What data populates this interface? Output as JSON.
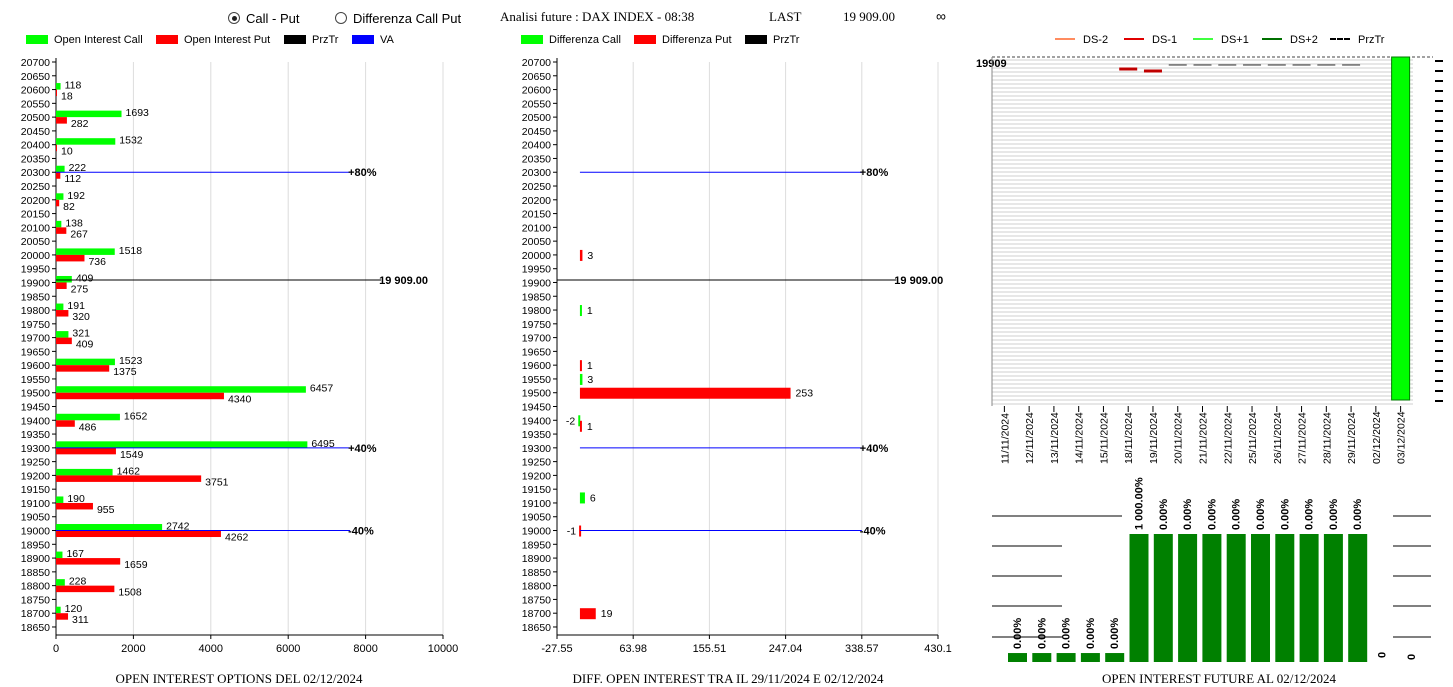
{
  "header": {
    "radio_call_put": "Call - Put",
    "radio_diff": "Differenza Call Put",
    "title": "Analisi future : DAX INDEX - 08:38",
    "last_label": "LAST",
    "last_value": "19 909.00",
    "infinity": "∞"
  },
  "colors": {
    "call": "#00ff00",
    "put": "#ff0000",
    "prz": "#000000",
    "va": "#0000ff",
    "future_bar": "#008000"
  },
  "left_legend": [
    "Open Interest Call",
    "Open Interest Put",
    "PrzTr",
    "VA"
  ],
  "mid_legend": [
    "Differenza Call",
    "Differenza Put",
    "PrzTr"
  ],
  "right_legend": [
    "DS-2",
    "DS-1",
    "DS+1",
    "DS+2",
    "PrzTr"
  ],
  "bottom_titles": {
    "left": "OPEN INTEREST OPTIONS DEL 02/12/2024",
    "mid": "DIFF. OPEN INTEREST TRA IL 29/11/2024 E 02/12/2024",
    "right": "OPEN INTEREST FUTURE AL 02/12/2024"
  },
  "chart_data": [
    {
      "type": "bar",
      "orientation": "horizontal",
      "title": "OPEN INTEREST OPTIONS DEL 02/12/2024",
      "strikes": [
        20700,
        20650,
        20600,
        20550,
        20500,
        20450,
        20400,
        20350,
        20300,
        20250,
        20200,
        20150,
        20100,
        20050,
        20000,
        19950,
        19900,
        19850,
        19800,
        19750,
        19700,
        19650,
        19600,
        19550,
        19500,
        19450,
        19400,
        19350,
        19300,
        19250,
        19200,
        19150,
        19100,
        19050,
        19000,
        18950,
        18900,
        18850,
        18800,
        18750,
        18700,
        18650
      ],
      "xticks": [
        "0",
        "2000",
        "4000",
        "6000",
        "8000",
        "10000"
      ],
      "xlim": [
        0,
        10000
      ],
      "call": [
        {
          "strike": 20600,
          "value": 118
        },
        {
          "strike": 20500,
          "value": 1693
        },
        {
          "strike": 20400,
          "value": 1532
        },
        {
          "strike": 20300,
          "value": 222
        },
        {
          "strike": 20200,
          "value": 192
        },
        {
          "strike": 20100,
          "value": 138
        },
        {
          "strike": 20000,
          "value": 1518
        },
        {
          "strike": 19900,
          "value": 409
        },
        {
          "strike": 19800,
          "value": 191
        },
        {
          "strike": 19700,
          "value": 321
        },
        {
          "strike": 19600,
          "value": 1523
        },
        {
          "strike": 19500,
          "value": 6457
        },
        {
          "strike": 19400,
          "value": 1652
        },
        {
          "strike": 19300,
          "value": 6495
        },
        {
          "strike": 19200,
          "value": 1462
        },
        {
          "strike": 19100,
          "value": 190
        },
        {
          "strike": 19000,
          "value": 2742
        },
        {
          "strike": 18900,
          "value": 167
        },
        {
          "strike": 18800,
          "value": 228
        },
        {
          "strike": 18700,
          "value": 120
        }
      ],
      "put": [
        {
          "strike": 20600,
          "value": 18
        },
        {
          "strike": 20500,
          "value": 282
        },
        {
          "strike": 20400,
          "value": 10
        },
        {
          "strike": 20300,
          "value": 112
        },
        {
          "strike": 20200,
          "value": 82
        },
        {
          "strike": 20100,
          "value": 267
        },
        {
          "strike": 20000,
          "value": 736
        },
        {
          "strike": 19900,
          "value": 275
        },
        {
          "strike": 19800,
          "value": 320
        },
        {
          "strike": 19700,
          "value": 409
        },
        {
          "strike": 19600,
          "value": 1375
        },
        {
          "strike": 19500,
          "value": 4340
        },
        {
          "strike": 19400,
          "value": 486
        },
        {
          "strike": 19300,
          "value": 1549
        },
        {
          "strike": 19200,
          "value": 3751
        },
        {
          "strike": 19100,
          "value": 955
        },
        {
          "strike": 19000,
          "value": 4262
        },
        {
          "strike": 18900,
          "value": 1659
        },
        {
          "strike": 18800,
          "value": 1508
        },
        {
          "strike": 18700,
          "value": 311
        }
      ],
      "lines": [
        {
          "strike": 20300,
          "label": "+80%",
          "color": "#0000ff",
          "end": 7600
        },
        {
          "strike": 19909,
          "label": "19 909.00",
          "color": "#000000",
          "end": 8400
        },
        {
          "strike": 19300,
          "label": "+40%",
          "color": "#0000ff",
          "end": 7600
        },
        {
          "strike": 19000,
          "label": "-40%",
          "color": "#0000ff",
          "end": 7600
        }
      ]
    },
    {
      "type": "bar",
      "orientation": "horizontal",
      "title": "DIFF. OPEN INTEREST TRA IL 29/11/2024 E 02/12/2024",
      "xticks": [
        "-27.55",
        "63.98",
        "155.51",
        "247.04",
        "338.57",
        "430.1"
      ],
      "xlim": [
        -27.55,
        430.1
      ],
      "bars": [
        {
          "strike": 20000,
          "value": 3,
          "series": "put"
        },
        {
          "strike": 19800,
          "value": 1,
          "series": "call"
        },
        {
          "strike": 19600,
          "value": 1,
          "series": "put"
        },
        {
          "strike": 19550,
          "value": 3,
          "series": "call"
        },
        {
          "strike": 19500,
          "value": 253,
          "series": "put"
        },
        {
          "strike": 19400,
          "value": -2,
          "series": "call"
        },
        {
          "strike": 19380,
          "value": 1,
          "series": "put"
        },
        {
          "strike": 19120,
          "value": 6,
          "series": "call"
        },
        {
          "strike": 19000,
          "value": -1,
          "series": "put"
        },
        {
          "strike": 18700,
          "value": 19,
          "series": "put"
        }
      ],
      "lines": [
        {
          "strike": 20300,
          "label": "+80%",
          "color": "#0000ff",
          "end": 338.57
        },
        {
          "strike": 19909,
          "label": "19 909.00",
          "color": "#000000",
          "end": 380
        },
        {
          "strike": 19300,
          "label": "+40%",
          "color": "#0000ff",
          "end": 338.57
        },
        {
          "strike": 19000,
          "label": "-40%",
          "color": "#0000ff",
          "end": 338.57
        }
      ]
    },
    {
      "type": "bar",
      "title": "OPEN INTEREST FUTURE AL 02/12/2024",
      "price_label": "19909",
      "categories": [
        "11/11/2024",
        "12/11/2024",
        "13/11/2024",
        "14/11/2024",
        "15/11/2024",
        "18/11/2024",
        "19/11/2024",
        "20/11/2024",
        "21/11/2024",
        "22/11/2024",
        "25/11/2024",
        "26/11/2024",
        "27/11/2024",
        "28/11/2024",
        "29/11/2024",
        "02/12/2024",
        "03/12/2024"
      ],
      "bottom_bars": [
        {
          "label": "0.00%",
          "level": 0.07
        },
        {
          "label": "0.00%",
          "level": 0.07
        },
        {
          "label": "0.00%",
          "level": 0.07
        },
        {
          "label": "0.00%",
          "level": 0.07
        },
        {
          "label": "0.00%",
          "level": 0.07
        },
        {
          "label": "1 000.00%",
          "level": 1
        },
        {
          "label": "0.00%",
          "level": 1
        },
        {
          "label": "0.00%",
          "level": 1
        },
        {
          "label": "0.00%",
          "level": 1
        },
        {
          "label": "0.00%",
          "level": 1
        },
        {
          "label": "0.00%",
          "level": 1
        },
        {
          "label": "0.00%",
          "level": 1
        },
        {
          "label": "0.00%",
          "level": 1
        },
        {
          "label": "0.00%",
          "level": 1
        },
        {
          "label": "0.00%",
          "level": 1
        },
        {
          "label": "0",
          "level": 0
        }
      ],
      "side_label": "0"
    }
  ]
}
